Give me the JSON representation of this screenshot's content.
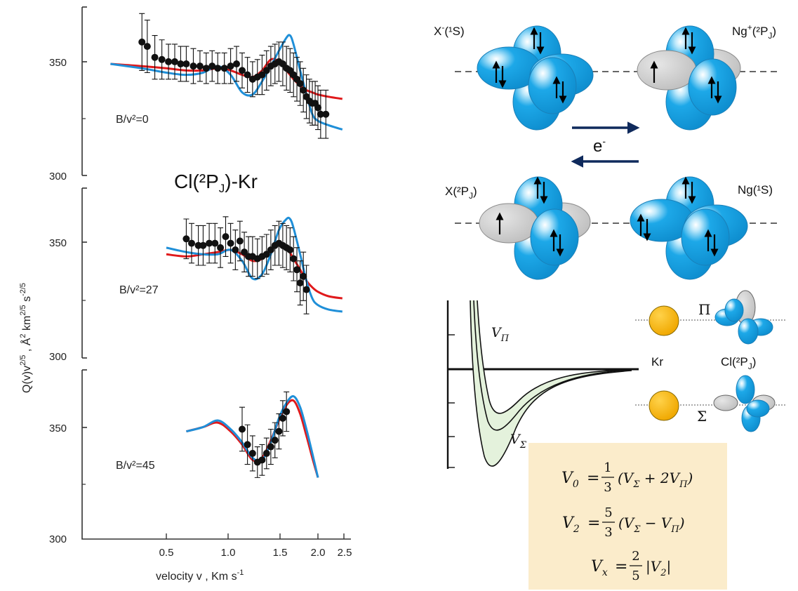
{
  "left_figure": {
    "title": "Cl(²P",
    "title_sub": "J",
    "title_tail": ")-Kr",
    "ylabel": "Q(v)v",
    "ylabel_sup1": "2/5",
    "ylabel_mid": " , Å",
    "ylabel_sup2": "2",
    "ylabel_mid2": " km",
    "ylabel_sup3": "2/5",
    "ylabel_mid3": " s",
    "ylabel_sup4": "-2/5",
    "xlabel": "velocity v , Km s",
    "xlabel_sup": "-1",
    "x_tick_labels": [
      "0.5",
      "1.0",
      "1.5",
      "2.0",
      "2.5"
    ],
    "y_tick_labels": [
      "350",
      "300"
    ],
    "panels": [
      {
        "label": "B/v²=0"
      },
      {
        "label": "B/v²=27"
      },
      {
        "label": "B/v²=45"
      }
    ]
  },
  "chart_data": [
    {
      "type": "scatter",
      "title": "Cl(²PJ)-Kr",
      "panel": "B/v²=0",
      "xlabel": "velocity v , Km s-1",
      "ylabel": "Q(v)v2/5 , Å2 km2/5 s-2/5",
      "xscale": "log",
      "xlim": [
        0.3,
        2.6
      ],
      "ylim": [
        295,
        372
      ],
      "series": [
        {
          "kind": "points",
          "x": [
            0.4,
            0.42,
            0.45,
            0.48,
            0.51,
            0.54,
            0.57,
            0.6,
            0.64,
            0.68,
            0.72,
            0.76,
            0.8,
            0.85,
            0.9,
            0.95,
            1.0,
            1.05,
            1.1,
            1.15,
            1.2,
            1.25,
            1.3,
            1.35,
            1.4,
            1.45,
            1.5,
            1.55,
            1.6,
            1.65,
            1.7,
            1.75,
            1.8,
            1.85,
            1.9,
            1.95,
            2.0,
            2.05,
            2.15
          ],
          "y": [
            356,
            354,
            349,
            348,
            347,
            347,
            346,
            346,
            345,
            345,
            344,
            345,
            344,
            344,
            345,
            346,
            343,
            341,
            339,
            340,
            341,
            343,
            345,
            346,
            347,
            346,
            344,
            343,
            341,
            339,
            337,
            334,
            331,
            329,
            328,
            328,
            326,
            323,
            323
          ],
          "err": [
            13,
            12,
            10,
            9,
            8,
            8,
            8,
            8,
            8,
            7,
            7,
            7,
            7,
            7,
            8,
            8,
            8,
            8,
            8,
            8,
            9,
            9,
            9,
            9,
            9,
            10,
            10,
            10,
            10,
            10,
            10,
            10,
            10,
            10,
            10,
            10,
            10,
            11,
            11
          ]
        },
        {
          "kind": "line",
          "color": "red",
          "x": [
            0.3,
            0.4,
            0.5,
            0.6,
            0.7,
            0.8,
            0.9,
            1.0,
            1.1,
            1.2,
            1.3,
            1.4,
            1.5,
            1.6,
            1.7,
            1.8,
            1.9,
            2.0,
            2.2,
            2.5
          ],
          "y": [
            346,
            345,
            344,
            343,
            343,
            344,
            343,
            341,
            340,
            343,
            348,
            347,
            343,
            339,
            336,
            334,
            333,
            332,
            331,
            330
          ]
        },
        {
          "kind": "line",
          "color": "blue",
          "x": [
            0.3,
            0.4,
            0.5,
            0.6,
            0.7,
            0.8,
            0.9,
            1.0,
            1.1,
            1.2,
            1.3,
            1.4,
            1.5,
            1.55,
            1.6,
            1.7,
            1.8,
            1.9,
            2.0,
            2.2,
            2.5
          ],
          "y": [
            346,
            344,
            342,
            341,
            342,
            345,
            341,
            333,
            332,
            338,
            345,
            352,
            358,
            359,
            355,
            343,
            332,
            323,
            320,
            318,
            316
          ]
        }
      ]
    },
    {
      "type": "scatter",
      "panel": "B/v²=27",
      "xscale": "log",
      "xlim": [
        0.3,
        2.6
      ],
      "ylim": [
        295,
        372
      ],
      "series": [
        {
          "kind": "points",
          "x": [
            0.6,
            0.63,
            0.67,
            0.7,
            0.74,
            0.78,
            0.82,
            0.86,
            0.9,
            0.94,
            0.98,
            1.02,
            1.06,
            1.1,
            1.15,
            1.2,
            1.25,
            1.3,
            1.35,
            1.4,
            1.45,
            1.5,
            1.55,
            1.6,
            1.65,
            1.7,
            1.75,
            1.8
          ],
          "y": [
            349,
            347,
            346,
            346,
            347,
            347,
            345,
            350,
            347,
            344,
            348,
            343,
            341,
            341,
            340,
            341,
            342,
            344,
            346,
            347,
            346,
            345,
            344,
            340,
            335,
            329,
            332,
            326
          ],
          "err": [
            9,
            9,
            9,
            9,
            9,
            9,
            9,
            9,
            9,
            9,
            9,
            9,
            9,
            9,
            9,
            9,
            9,
            9,
            9,
            10,
            10,
            10,
            10,
            10,
            10,
            10,
            11,
            11
          ]
        },
        {
          "kind": "line",
          "color": "red",
          "x": [
            0.5,
            0.6,
            0.7,
            0.8,
            0.9,
            1.0,
            1.1,
            1.2,
            1.3,
            1.4,
            1.5,
            1.6,
            1.7,
            1.8,
            1.9,
            2.0,
            2.2,
            2.5
          ],
          "y": [
            342,
            341,
            342,
            343,
            344,
            342,
            339,
            340,
            344,
            347,
            345,
            340,
            335,
            330,
            327,
            325,
            323,
            322
          ]
        },
        {
          "kind": "line",
          "color": "blue",
          "x": [
            0.5,
            0.6,
            0.7,
            0.8,
            0.9,
            1.0,
            1.1,
            1.2,
            1.3,
            1.4,
            1.5,
            1.55,
            1.6,
            1.7,
            1.8,
            1.9,
            2.0,
            2.2,
            2.5
          ],
          "y": [
            345,
            343,
            342,
            342,
            344,
            339,
            331,
            333,
            342,
            353,
            358,
            358,
            354,
            342,
            330,
            322,
            319,
            317,
            316
          ]
        }
      ]
    },
    {
      "type": "scatter",
      "panel": "B/v²=45",
      "xscale": "log",
      "xlim": [
        0.3,
        2.6
      ],
      "ylim": [
        295,
        372
      ],
      "series": [
        {
          "kind": "points",
          "x": [
            1.0,
            1.05,
            1.1,
            1.15,
            1.2,
            1.25,
            1.3,
            1.35,
            1.4,
            1.45,
            1.5
          ],
          "y": [
            345,
            338,
            334,
            330,
            331,
            334,
            337,
            340,
            344,
            350,
            353
          ],
          "err": [
            10,
            9,
            8,
            7,
            7,
            7,
            8,
            8,
            8,
            8,
            9
          ]
        },
        {
          "kind": "line",
          "color": "red",
          "x": [
            0.6,
            0.7,
            0.8,
            0.9,
            1.0,
            1.1,
            1.2,
            1.3,
            1.4,
            1.5,
            1.6,
            1.7,
            1.8,
            1.9,
            2.0
          ],
          "y": [
            344,
            346,
            348,
            344,
            338,
            331,
            332,
            340,
            349,
            356,
            358,
            352,
            342,
            332,
            323
          ]
        },
        {
          "kind": "line",
          "color": "blue",
          "x": [
            0.6,
            0.7,
            0.8,
            0.9,
            1.0,
            1.1,
            1.2,
            1.3,
            1.4,
            1.5,
            1.6,
            1.7,
            1.8,
            1.9,
            2.0
          ],
          "y": [
            344,
            346,
            349,
            345,
            339,
            332,
            331,
            339,
            350,
            357,
            360,
            355,
            345,
            334,
            323
          ]
        }
      ]
    }
  ],
  "orbitals": {
    "top_left": "X",
    "top_left_sup": "-",
    "top_left_tail": "(¹S)",
    "top_right": "Ng",
    "top_right_sup": "+",
    "top_right_tail": "(²P",
    "top_right_sub": "J",
    "top_right_end": ")",
    "electron": "e",
    "electron_sup": "-",
    "bot_left": "X(²P",
    "bot_left_sub": "J",
    "bot_left_end": ")",
    "bot_right": "Ng(¹S)"
  },
  "potential": {
    "v_pi": "V",
    "v_pi_sub": "Π",
    "v_sigma": "V",
    "v_sigma_sub": "Σ",
    "pi_label": "Π",
    "sigma_label": "Σ",
    "kr_label": "Kr",
    "cl_label": "Cl(²P",
    "cl_sub": "J",
    "cl_end": ")"
  },
  "equations": {
    "eq1_lhs": "V",
    "eq1_lhs_sub": "0",
    "eq1_num": "1",
    "eq1_den": "3",
    "eq1_rhs": "(V",
    "eq1_rhs_sub1": "Σ",
    "eq1_rhs_mid": " + 2V",
    "eq1_rhs_sub2": "Π",
    "eq1_rhs_end": ")",
    "eq2_lhs": "V",
    "eq2_lhs_sub": "2",
    "eq2_num": "5",
    "eq2_den": "3",
    "eq2_rhs": "(V",
    "eq2_rhs_sub1": "Σ",
    "eq2_rhs_mid": " − V",
    "eq2_rhs_sub2": "Π",
    "eq2_rhs_end": ")",
    "eq3_lhs": "V",
    "eq3_lhs_sub": "x",
    "eq3_num": "2",
    "eq3_den": "5",
    "eq3_rhs": "|V",
    "eq3_rhs_sub": "2",
    "eq3_rhs_end": "|",
    "box_color": "#fbeccb"
  },
  "colors": {
    "red_line": "#e0191b",
    "blue_line": "#1f8fd8",
    "orbital_blue": "#1da8e8",
    "orbital_grey": "#c7c7c7",
    "kr_gold": "#f6b400",
    "arrow_navy": "#0f2a5c",
    "well_fill": "#e4f2dc"
  }
}
